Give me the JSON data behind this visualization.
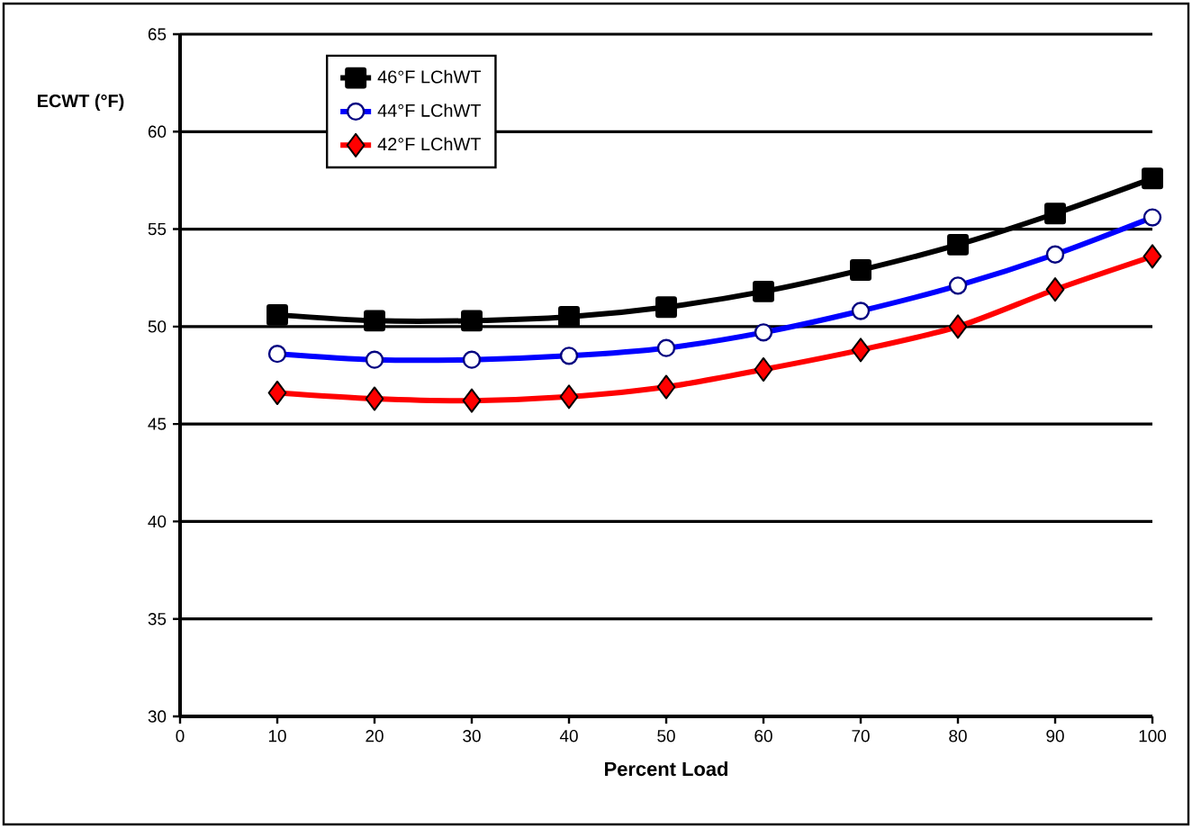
{
  "chart_data": {
    "type": "line",
    "xlabel": "Percent Load",
    "ylabel": "ECWT (°F)",
    "x": [
      10,
      20,
      30,
      40,
      50,
      60,
      70,
      80,
      90,
      100
    ],
    "xlim": [
      0,
      100
    ],
    "xticks": [
      0,
      10,
      20,
      30,
      40,
      50,
      60,
      70,
      80,
      90,
      100
    ],
    "ylim": [
      30,
      65
    ],
    "yticks": [
      30,
      35,
      40,
      45,
      50,
      55,
      60,
      65
    ],
    "grid": "y",
    "legend": "top left",
    "series": [
      {
        "name": "46°F LChWT",
        "color": "#000000",
        "marker": "square",
        "values": [
          50.6,
          50.3,
          50.3,
          50.5,
          51.0,
          51.8,
          52.9,
          54.2,
          55.8,
          57.6
        ]
      },
      {
        "name": "44°F LChWT",
        "color": "#0000ff",
        "marker": "circle",
        "values": [
          48.6,
          48.3,
          48.3,
          48.5,
          48.9,
          49.7,
          50.8,
          52.1,
          53.7,
          55.6
        ]
      },
      {
        "name": "42°F LChWT",
        "color": "#ff0000",
        "marker": "diamond",
        "values": [
          46.6,
          46.3,
          46.2,
          46.4,
          46.9,
          47.8,
          48.8,
          50.0,
          51.9,
          53.6
        ]
      }
    ]
  }
}
